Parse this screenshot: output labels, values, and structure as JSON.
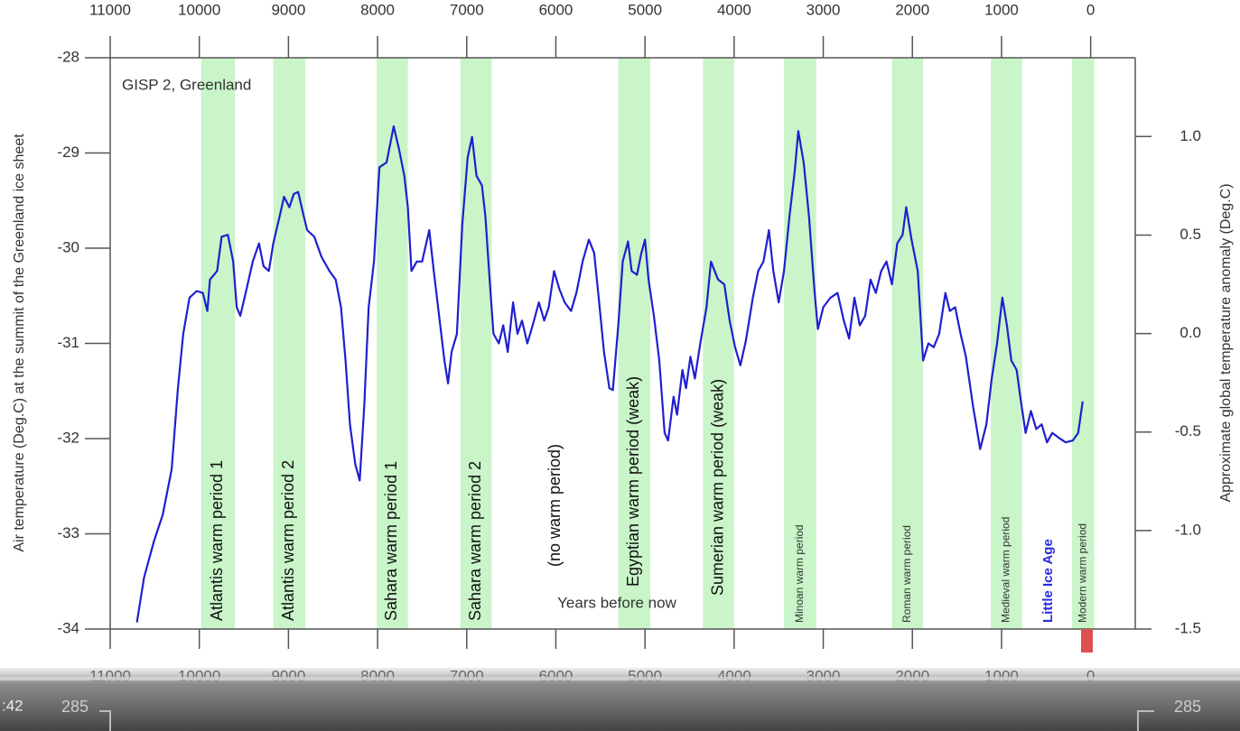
{
  "chart_data": {
    "type": "line",
    "annotation": "GISP 2, Greenland",
    "x_label": "Years before now",
    "y_label": "Air temperature (Deg.C) at the summit of the Greenland ice sheet",
    "y2_label": "Approximate global temperature anomaly (Deg.C)",
    "color": "#1f1fd0",
    "band_color": "#c9f5c9",
    "xlim": [
      11000,
      -500
    ],
    "xticks": [
      11000,
      10000,
      9000,
      8000,
      7000,
      6000,
      5000,
      4000,
      3000,
      2000,
      1000,
      0
    ],
    "ylim": [
      -34,
      -28
    ],
    "yticks": [
      -34,
      -33,
      -32,
      -31,
      -30,
      -29,
      -28
    ],
    "y2lim": [
      -1.5,
      1.4
    ],
    "y2ticks": [
      {
        "value": -1.5,
        "label": "-1.5"
      },
      {
        "value": -1.0,
        "label": "-1.0"
      },
      -0.5,
      {
        "value": 0.0,
        "label": "0.0"
      },
      0.5,
      {
        "value": 1.0,
        "label": "1.0"
      }
    ],
    "bands": [
      {
        "label": "Atlantis warm period 1",
        "start": 9980,
        "end": 9600
      },
      {
        "label": "Atlantis warm period 2",
        "start": 9170,
        "end": 8810
      },
      {
        "label": "Sahara warm period 1",
        "start": 8010,
        "end": 7660
      },
      {
        "label": "Sahara warm period 2",
        "start": 7070,
        "end": 6720
      },
      {
        "label": "Egyptian warm period (weak)",
        "start": 5300,
        "end": 4940
      },
      {
        "label": "Sumerian warm period (weak)",
        "start": 4350,
        "end": 4000
      },
      {
        "label": "Minoan warm period",
        "start": 3440,
        "end": 3080
      },
      {
        "label": "Roman warm period",
        "start": 2230,
        "end": 1880
      },
      {
        "label": "Medieval warm period",
        "start": 1120,
        "end": 770
      },
      {
        "label": "Modern warm period",
        "start": 210,
        "end": -40
      }
    ],
    "notes": [
      {
        "label": "(no warm period)",
        "x": 6000
      },
      {
        "label": "Little Ice Age",
        "x": 470
      }
    ],
    "x": [
      10700,
      10620,
      10510,
      10410,
      10310,
      10240,
      10180,
      10110,
      10030,
      9960,
      9910,
      9880,
      9800,
      9750,
      9680,
      9620,
      9580,
      9540,
      9480,
      9400,
      9330,
      9280,
      9220,
      9170,
      9100,
      9050,
      8990,
      8940,
      8890,
      8840,
      8790,
      8710,
      8630,
      8540,
      8470,
      8410,
      8360,
      8310,
      8250,
      8200,
      8150,
      8100,
      8040,
      7980,
      7900,
      7820,
      7760,
      7700,
      7660,
      7620,
      7560,
      7500,
      7420,
      7370,
      7310,
      7250,
      7210,
      7170,
      7110,
      7050,
      6990,
      6940,
      6890,
      6830,
      6790,
      6750,
      6700,
      6640,
      6590,
      6540,
      6480,
      6430,
      6380,
      6320,
      6260,
      6190,
      6130,
      6080,
      6020,
      5960,
      5900,
      5830,
      5770,
      5700,
      5630,
      5570,
      5520,
      5460,
      5400,
      5360,
      5300,
      5250,
      5190,
      5150,
      5090,
      5040,
      5000,
      4960,
      4900,
      4840,
      4780,
      4740,
      4680,
      4640,
      4580,
      4540,
      4490,
      4440,
      4380,
      4310,
      4260,
      4180,
      4110,
      4050,
      3990,
      3930,
      3870,
      3790,
      3730,
      3670,
      3610,
      3560,
      3500,
      3440,
      3380,
      3320,
      3280,
      3220,
      3160,
      3100,
      3060,
      3000,
      2920,
      2840,
      2770,
      2710,
      2650,
      2590,
      2530,
      2470,
      2410,
      2350,
      2290,
      2230,
      2170,
      2110,
      2070,
      2010,
      1940,
      1880,
      1820,
      1760,
      1700,
      1630,
      1580,
      1520,
      1460,
      1400,
      1320,
      1240,
      1170,
      1110,
      1050,
      990,
      940,
      890,
      830,
      790,
      730,
      670,
      610,
      550,
      490,
      430,
      360,
      280,
      200,
      140,
      90
    ],
    "values": [
      -33.93,
      -33.46,
      -33.08,
      -32.8,
      -32.32,
      -31.47,
      -30.9,
      -30.52,
      -30.45,
      -30.47,
      -30.66,
      -30.33,
      -30.24,
      -29.88,
      -29.86,
      -30.14,
      -30.62,
      -30.71,
      -30.47,
      -30.14,
      -29.95,
      -30.19,
      -30.24,
      -29.95,
      -29.67,
      -29.46,
      -29.57,
      -29.43,
      -29.41,
      -29.62,
      -29.81,
      -29.88,
      -30.09,
      -30.24,
      -30.33,
      -30.62,
      -31.18,
      -31.85,
      -32.27,
      -32.44,
      -31.66,
      -30.62,
      -30.14,
      -29.15,
      -29.1,
      -28.72,
      -28.96,
      -29.24,
      -29.57,
      -30.24,
      -30.14,
      -30.14,
      -29.81,
      -30.24,
      -30.71,
      -31.18,
      -31.42,
      -31.09,
      -30.9,
      -29.76,
      -29.05,
      -28.83,
      -29.24,
      -29.34,
      -29.67,
      -30.24,
      -30.9,
      -31.0,
      -30.81,
      -31.09,
      -30.57,
      -30.9,
      -30.76,
      -31.0,
      -30.81,
      -30.57,
      -30.76,
      -30.62,
      -30.24,
      -30.43,
      -30.57,
      -30.66,
      -30.47,
      -30.14,
      -29.91,
      -30.05,
      -30.52,
      -31.09,
      -31.47,
      -31.49,
      -30.81,
      -30.14,
      -29.93,
      -30.24,
      -30.28,
      -30.05,
      -29.91,
      -30.33,
      -30.71,
      -31.18,
      -31.94,
      -32.02,
      -31.56,
      -31.75,
      -31.28,
      -31.47,
      -31.14,
      -31.37,
      -31.0,
      -30.62,
      -30.14,
      -30.33,
      -30.38,
      -30.76,
      -31.04,
      -31.23,
      -30.98,
      -30.52,
      -30.24,
      -30.14,
      -29.81,
      -30.24,
      -30.57,
      -30.24,
      -29.67,
      -29.19,
      -28.77,
      -29.1,
      -29.67,
      -30.43,
      -30.85,
      -30.62,
      -30.52,
      -30.47,
      -30.76,
      -30.95,
      -30.52,
      -30.81,
      -30.71,
      -30.33,
      -30.47,
      -30.24,
      -30.14,
      -30.38,
      -29.95,
      -29.86,
      -29.57,
      -29.91,
      -30.24,
      -31.18,
      -31.0,
      -31.04,
      -30.9,
      -30.47,
      -30.66,
      -30.62,
      -30.9,
      -31.14,
      -31.66,
      -32.11,
      -31.85,
      -31.37,
      -31.0,
      -30.52,
      -30.81,
      -31.18,
      -31.28,
      -31.56,
      -31.94,
      -31.71,
      -31.9,
      -31.85,
      -32.04,
      -31.94,
      -31.99,
      -32.04,
      -32.02,
      -31.94,
      -31.61
    ]
  },
  "video": {
    "time": ":42",
    "next_chart_label": "285"
  }
}
